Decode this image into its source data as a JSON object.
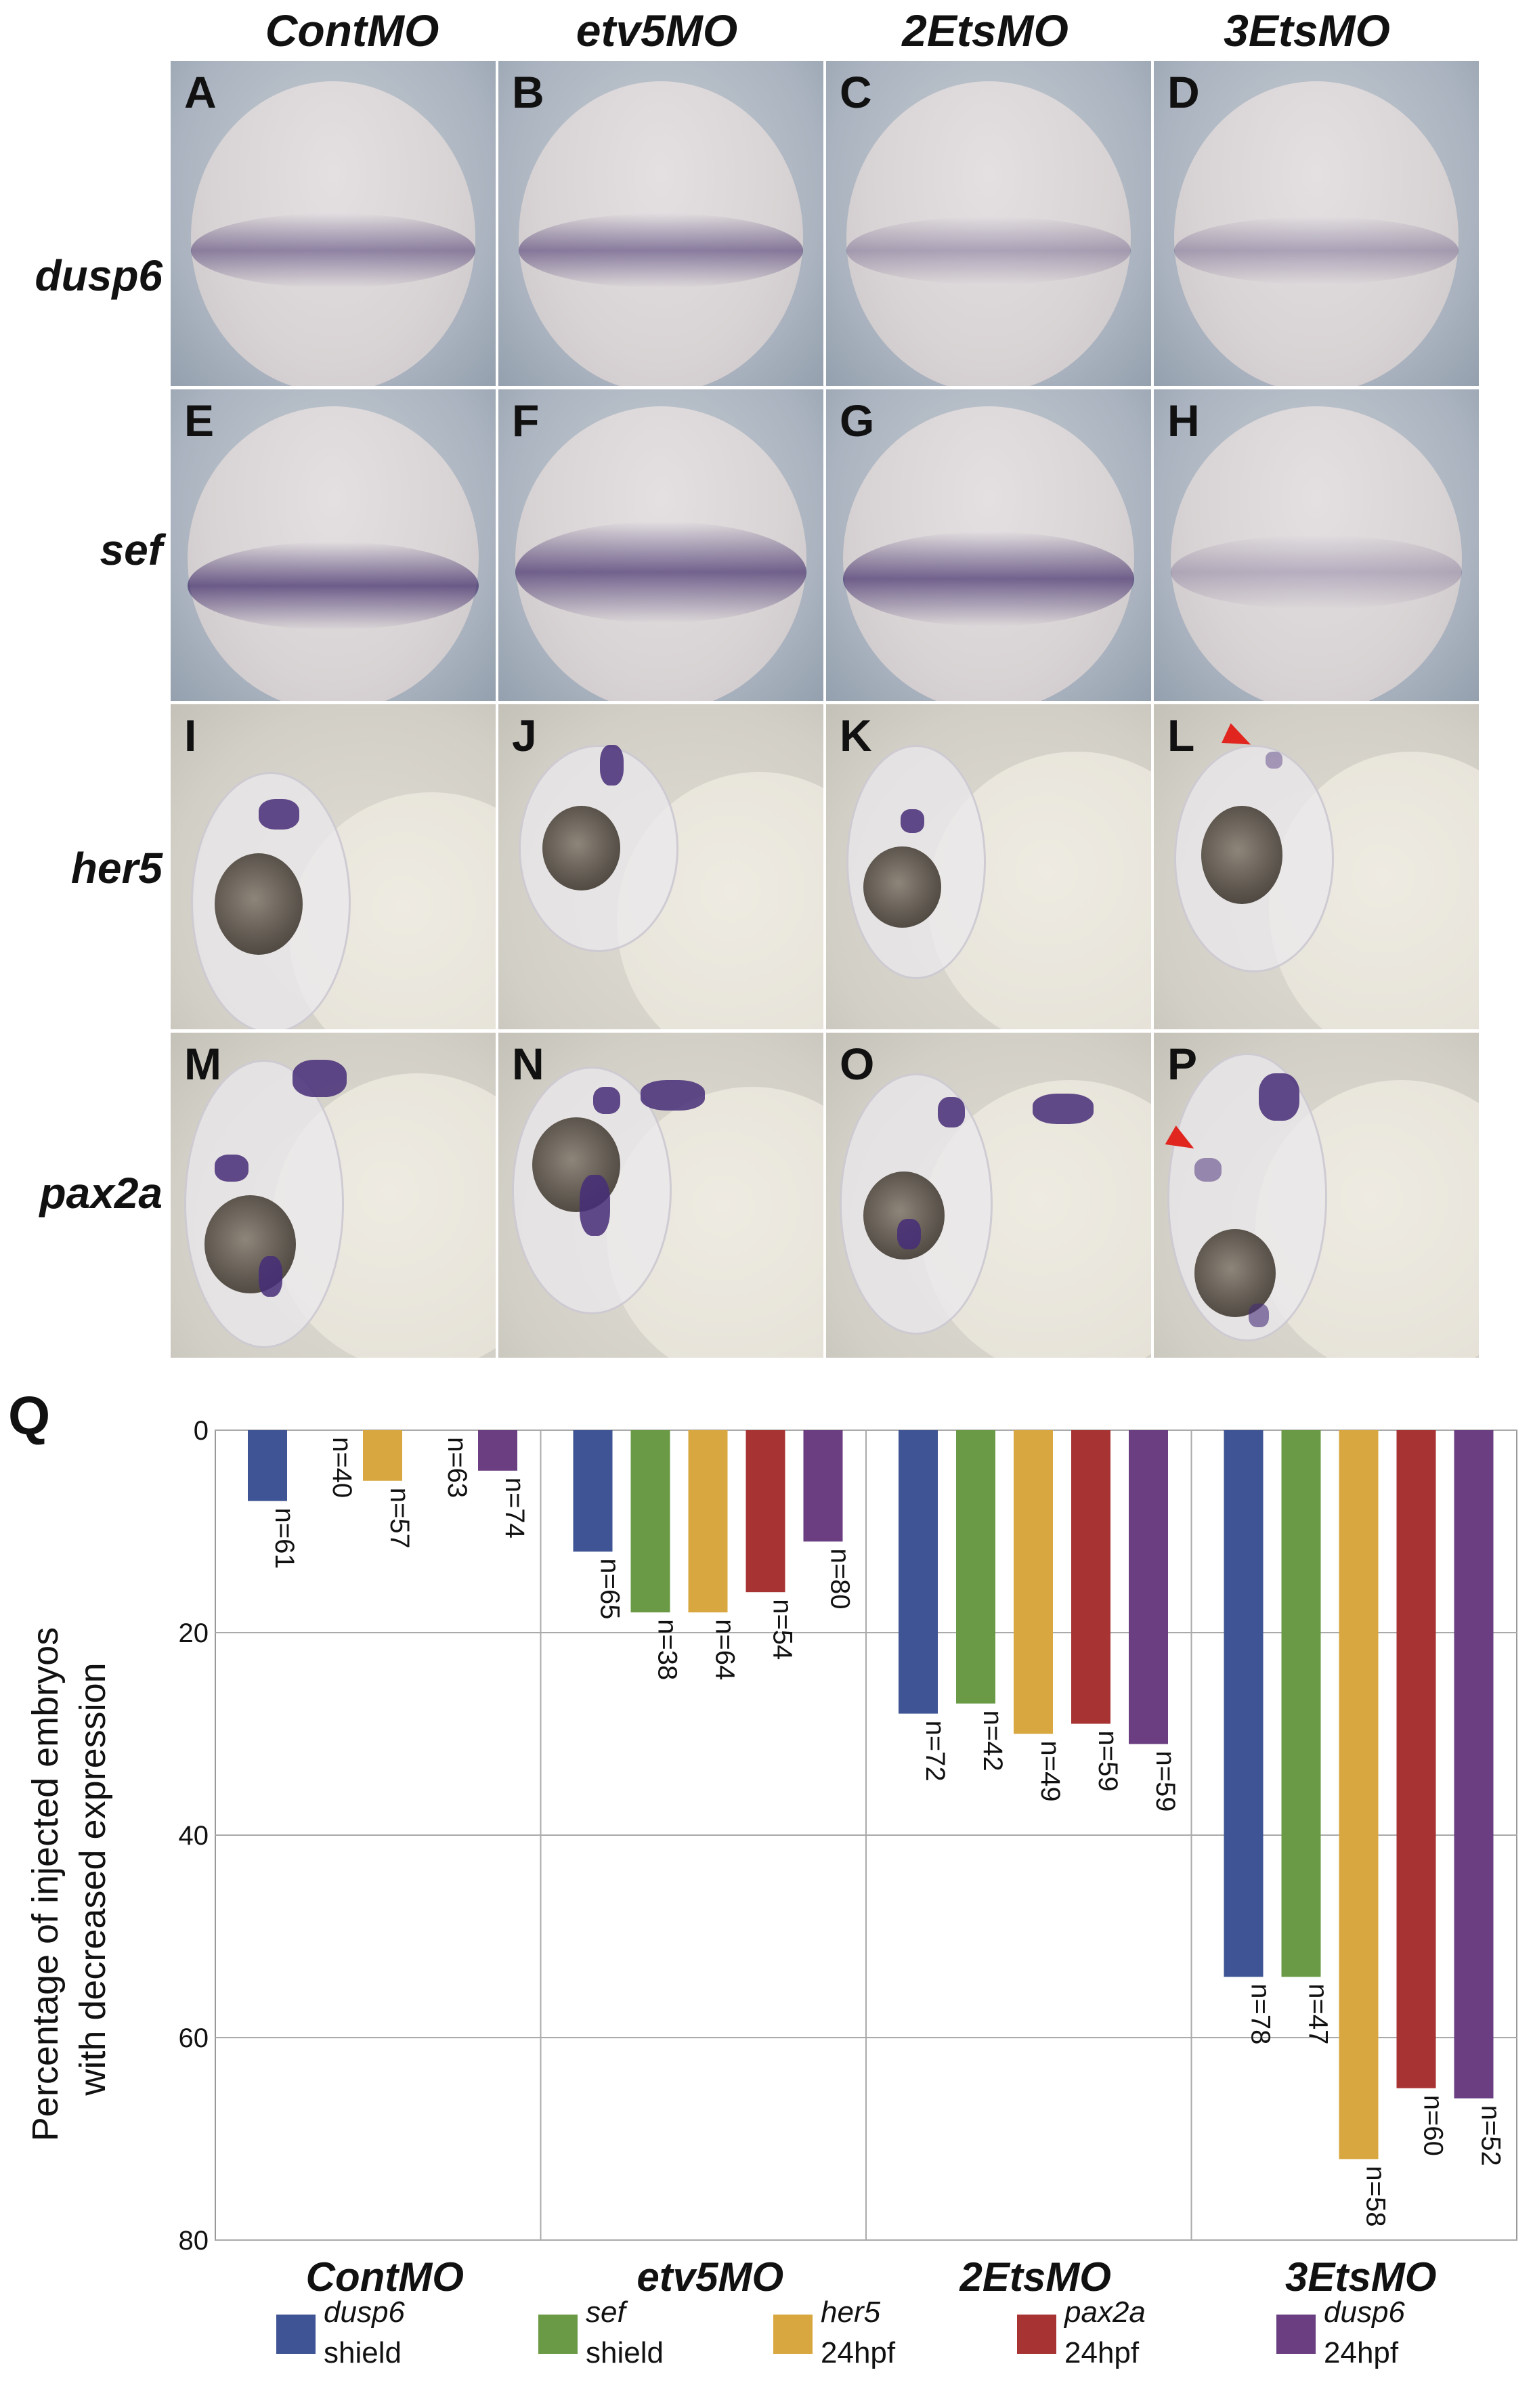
{
  "figure": {
    "columns": [
      "ContMO",
      "etv5MO",
      "2EtsMO",
      "3EtsMO"
    ],
    "rows": [
      "dusp6",
      "sef",
      "her5",
      "pax2a"
    ],
    "panels": [
      [
        "A",
        "B",
        "C",
        "D"
      ],
      [
        "E",
        "F",
        "G",
        "H"
      ],
      [
        "I",
        "J",
        "K",
        "L"
      ],
      [
        "M",
        "N",
        "O",
        "P"
      ]
    ],
    "chart_panel_letter": "Q",
    "arrowhead_color": "#e0261f"
  },
  "chart_data": {
    "type": "bar",
    "categories": [
      "ContMO",
      "etv5MO",
      "2EtsMO",
      "3EtsMO"
    ],
    "ylabel": "Percentage of injected embryos with decreased expression",
    "ylabel_lines": [
      "Percentage of injected embryos",
      "with decreased expression"
    ],
    "ylim": [
      0,
      80
    ],
    "y_inverted": true,
    "yticks": [
      0,
      20,
      40,
      60,
      80
    ],
    "grid": true,
    "legend_position": "bottom",
    "series": [
      {
        "name": "dusp6",
        "stage": "shield",
        "color": "#3f5494",
        "values": [
          7,
          12,
          28,
          54
        ],
        "n": [
          "n=61",
          "n=65",
          "n=72",
          "n=78"
        ]
      },
      {
        "name": "sef",
        "stage": "shield",
        "color": "#6a9a45",
        "values": [
          0,
          18,
          27,
          54
        ],
        "n": [
          "n=40",
          "n=38",
          "n=42",
          "n=47"
        ]
      },
      {
        "name": "her5",
        "stage": "24hpf",
        "color": "#d9a740",
        "values": [
          5,
          18,
          30,
          72
        ],
        "n": [
          "n=57",
          "n=64",
          "n=49",
          "n=58"
        ]
      },
      {
        "name": "pax2a",
        "stage": "24hpf",
        "color": "#a83333",
        "values": [
          0,
          16,
          29,
          65
        ],
        "n": [
          "n=63",
          "n=54",
          "n=59",
          "n=60"
        ]
      },
      {
        "name": "dusp6",
        "stage": "24hpf",
        "color": "#6a3e80",
        "values": [
          4,
          11,
          31,
          66
        ],
        "n": [
          "n=74",
          "n=80",
          "n=59",
          "n=52"
        ]
      }
    ]
  }
}
